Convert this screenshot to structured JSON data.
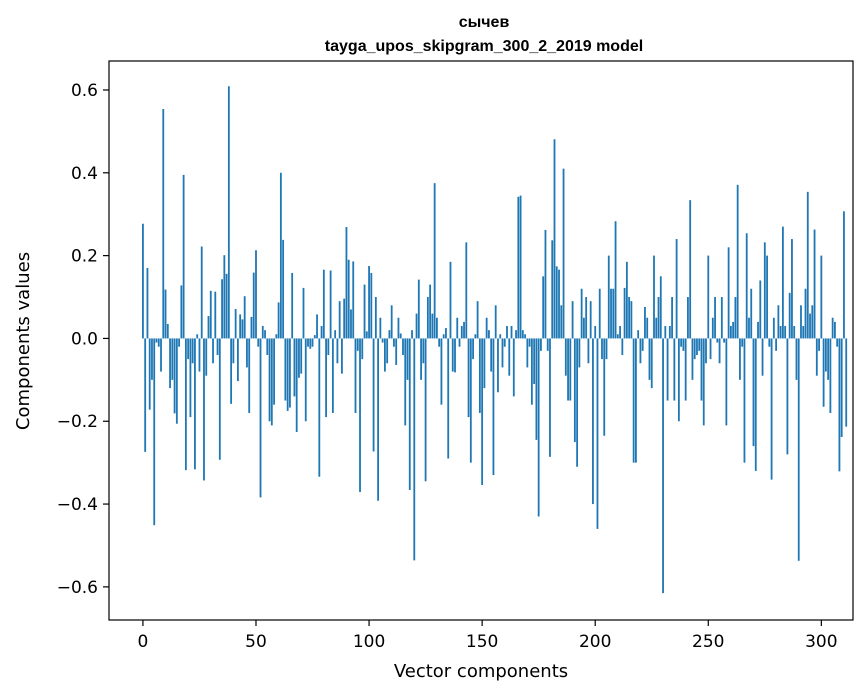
{
  "chart_data": {
    "type": "bar",
    "title": "сычев",
    "subtitle": "tayga_upos_skipgram_300_2_2019 model",
    "xlabel": "Vector components",
    "ylabel": "Components values",
    "xlim": [
      -15,
      314
    ],
    "ylim": [
      -0.68,
      0.67
    ],
    "xticks": [
      0,
      50,
      100,
      150,
      200,
      250,
      300
    ],
    "yticks": [
      -0.6,
      -0.4,
      -0.2,
      0.0,
      0.2,
      0.4,
      0.6
    ],
    "ytick_labels": [
      "−0.6",
      "−0.4",
      "−0.2",
      "0.0",
      "0.2",
      "0.4",
      "0.6"
    ],
    "xtick_labels": [
      "0",
      "50",
      "100",
      "150",
      "200",
      "250",
      "300"
    ],
    "bar_color": "#1f77b4",
    "x_start": 0,
    "values": [
      0.277,
      -0.274,
      0.17,
      -0.172,
      -0.1,
      -0.451,
      -0.01,
      -0.02,
      -0.08,
      0.554,
      0.118,
      0.035,
      -0.12,
      -0.1,
      -0.181,
      -0.206,
      -0.02,
      0.128,
      0.395,
      -0.318,
      -0.05,
      -0.19,
      -0.06,
      -0.316,
      0.01,
      -0.08,
      0.222,
      -0.343,
      -0.09,
      0.054,
      0.115,
      -0.06,
      0.113,
      -0.04,
      -0.293,
      0.143,
      0.201,
      0.156,
      0.609,
      -0.158,
      -0.06,
      0.071,
      -0.103,
      0.058,
      0.046,
      0.102,
      -0.07,
      -0.18,
      0.052,
      0.159,
      0.213,
      -0.02,
      -0.384,
      0.03,
      0.02,
      -0.04,
      -0.2,
      -0.21,
      -0.16,
      0.01,
      0.087,
      0.4,
      0.238,
      -0.15,
      -0.175,
      -0.167,
      0.158,
      -0.14,
      -0.226,
      -0.095,
      -0.085,
      0.122,
      -0.2,
      -0.02,
      -0.025,
      -0.02,
      0.008,
      0.058,
      -0.334,
      0.03,
      0.166,
      -0.19,
      -0.04,
      0.164,
      -0.18,
      0.02,
      -0.06,
      0.09,
      -0.085,
      0.096,
      0.269,
      0.19,
      0.07,
      0.186,
      -0.18,
      -0.03,
      -0.371,
      -0.05,
      0.13,
      0.017,
      0.175,
      0.158,
      -0.273,
      0.1,
      -0.392,
      0.05,
      -0.01,
      -0.08,
      -0.06,
      0.02,
      0.08,
      -0.02,
      -0.064,
      0.05,
      0.012,
      -0.04,
      -0.21,
      -0.1,
      -0.366,
      0.02,
      -0.536,
      0.06,
      0.142,
      -0.1,
      -0.06,
      -0.345,
      0.1,
      0.13,
      0.06,
      0.375,
      0.05,
      -0.02,
      -0.16,
      0.01,
      0.025,
      -0.29,
      0.185,
      -0.08,
      -0.082,
      0.05,
      -0.02,
      0.03,
      0.04,
      0.232,
      -0.19,
      -0.3,
      -0.05,
      0.01,
      0.09,
      -0.18,
      -0.354,
      -0.12,
      0.05,
      0.02,
      -0.08,
      -0.33,
      0.08,
      -0.13,
      0.01,
      -0.07,
      -0.02,
      0.03,
      -0.09,
      0.03,
      -0.14,
      0.02,
      0.342,
      0.345,
      0.02,
      0.01,
      -0.07,
      -0.02,
      -0.16,
      -0.11,
      -0.245,
      -0.43,
      -0.03,
      0.15,
      0.262,
      -0.03,
      -0.286,
      0.237,
      0.481,
      0.174,
      0.166,
      0.08,
      0.41,
      -0.09,
      -0.15,
      -0.15,
      0.09,
      -0.25,
      -0.31,
      -0.07,
      0.12,
      0.05,
      0.1,
      -0.06,
      0.09,
      -0.4,
      0.03,
      -0.46,
      0.12,
      -0.05,
      -0.235,
      -0.05,
      0.2,
      0.12,
      0.12,
      0.283,
      0.01,
      0.03,
      -0.04,
      0.122,
      0.185,
      0.1,
      0.09,
      -0.3,
      -0.3,
      0.02,
      -0.06,
      -0.03,
      0.076,
      0.05,
      -0.1,
      -0.12,
      0.2,
      0.05,
      0.1,
      0.15,
      -0.615,
      0.03,
      -0.15,
      0.03,
      0.1,
      -0.15,
      0.24,
      -0.2,
      -0.02,
      -0.03,
      -0.15,
      0.1,
      0.334,
      -0.1,
      -0.05,
      -0.04,
      -0.03,
      -0.15,
      -0.21,
      -0.06,
      0.2,
      -0.05,
      0.05,
      0.1,
      -0.01,
      -0.06,
      0.1,
      -0.01,
      -0.21,
      0.22,
      0.03,
      0.04,
      0.1,
      0.371,
      -0.1,
      -0.02,
      -0.3,
      0.254,
      0.05,
      0.12,
      -0.26,
      -0.32,
      0.04,
      0.14,
      -0.09,
      0.232,
      0.2,
      -0.02,
      -0.341,
      0.05,
      -0.03,
      0.08,
      0.03,
      0.27,
      0.03,
      -0.28,
      0.11,
      0.24,
      0.03,
      -0.1,
      -0.537,
      0.08,
      0.03,
      0.12,
      0.354,
      0.06,
      0.08,
      0.263,
      -0.09,
      -0.03,
      0.2,
      -0.165,
      -0.08,
      -0.1,
      -0.18,
      0.05,
      0.04,
      -0.02,
      -0.321,
      -0.238,
      0.307,
      -0.213
    ]
  }
}
